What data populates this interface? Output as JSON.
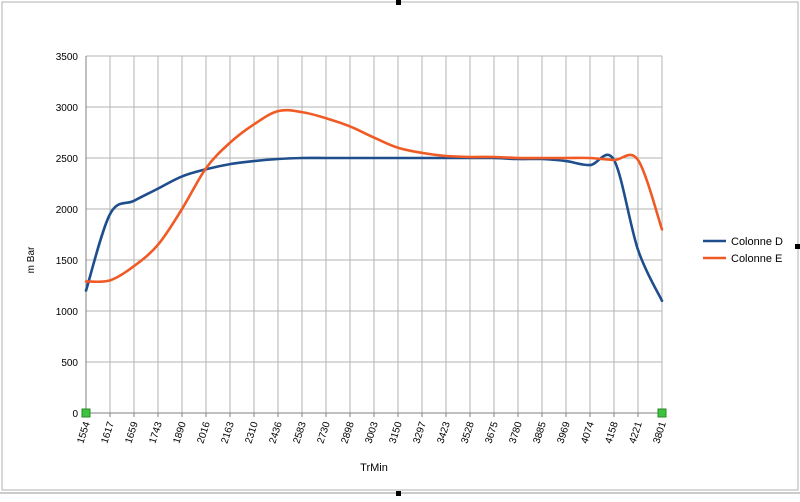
{
  "chart_data": {
    "type": "line",
    "title": "",
    "xlabel": "TrMin",
    "ylabel": "m Bar",
    "ylim": [
      0,
      3500
    ],
    "yticks": [
      0,
      500,
      1000,
      1500,
      2000,
      2500,
      3000,
      3500
    ],
    "grid": true,
    "legend_position": "right",
    "categories": [
      "1554",
      "1617",
      "1659",
      "1743",
      "1890",
      "2016",
      "2163",
      "2310",
      "2436",
      "2583",
      "2730",
      "2898",
      "3003",
      "3150",
      "3297",
      "3423",
      "3528",
      "3675",
      "3780",
      "3885",
      "3969",
      "4074",
      "4158",
      "4221",
      "3801"
    ],
    "series": [
      {
        "name": "Colonne D",
        "color": "#1f4e8c",
        "values": [
          1200,
          1950,
          2080,
          2200,
          2320,
          2390,
          2440,
          2470,
          2490,
          2500,
          2500,
          2500,
          2500,
          2500,
          2500,
          2500,
          2500,
          2500,
          2490,
          2490,
          2470,
          2430,
          2480,
          1600,
          1100
        ]
      },
      {
        "name": "Colonne E",
        "color": "#f05a24",
        "values": [
          1290,
          1300,
          1440,
          1650,
          2000,
          2400,
          2650,
          2830,
          2960,
          2950,
          2890,
          2810,
          2700,
          2600,
          2550,
          2520,
          2510,
          2510,
          2500,
          2500,
          2500,
          2500,
          2480,
          2480,
          1800
        ]
      }
    ]
  }
}
